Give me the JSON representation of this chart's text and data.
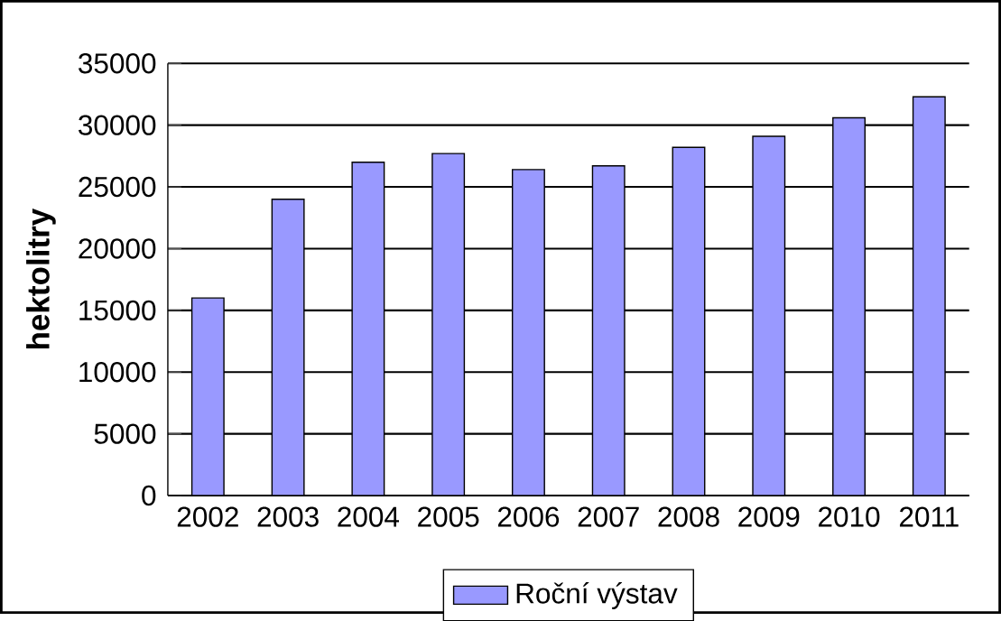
{
  "chart_data": {
    "type": "bar",
    "ylabel": "hektolitry",
    "categories": [
      "2002",
      "2003",
      "2004",
      "2005",
      "2006",
      "2007",
      "2008",
      "2009",
      "2010",
      "2011"
    ],
    "series": [
      {
        "name": "Roční výstav",
        "color": "#9999ff",
        "values": [
          16000,
          24000,
          27000,
          27700,
          26400,
          26700,
          28200,
          29100,
          30600,
          32300
        ]
      }
    ],
    "ylim": [
      0,
      35000
    ],
    "yticks": [
      0,
      5000,
      10000,
      15000,
      20000,
      25000,
      30000,
      35000
    ],
    "grid": "y",
    "legend": "bottom"
  }
}
